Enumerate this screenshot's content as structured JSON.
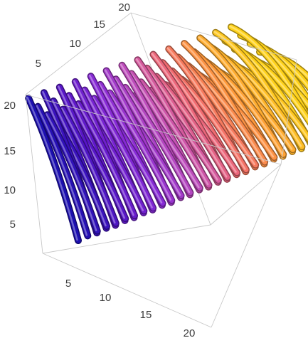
{
  "chart_data": {
    "type": "3d-streamtube",
    "axes": {
      "x": {
        "ticks": [
          "5",
          "10",
          "15",
          "20"
        ],
        "range": [
          0,
          20
        ],
        "label": ""
      },
      "y": {
        "ticks": [
          "5",
          "10",
          "15",
          "20"
        ],
        "range": [
          0,
          20
        ],
        "label": ""
      },
      "z": {
        "ticks": [
          "5",
          "10",
          "15",
          "20"
        ],
        "range": [
          0,
          20
        ],
        "label": ""
      }
    },
    "colormap": [
      "#1c0fb0",
      "#5a16c8",
      "#8a2bd6",
      "#c34fb8",
      "#f26a72",
      "#ff9a3a",
      "#ffd21a"
    ],
    "color_variable": "magnitude",
    "tube_count": 56,
    "grid": false,
    "legend": "none",
    "title": ""
  }
}
